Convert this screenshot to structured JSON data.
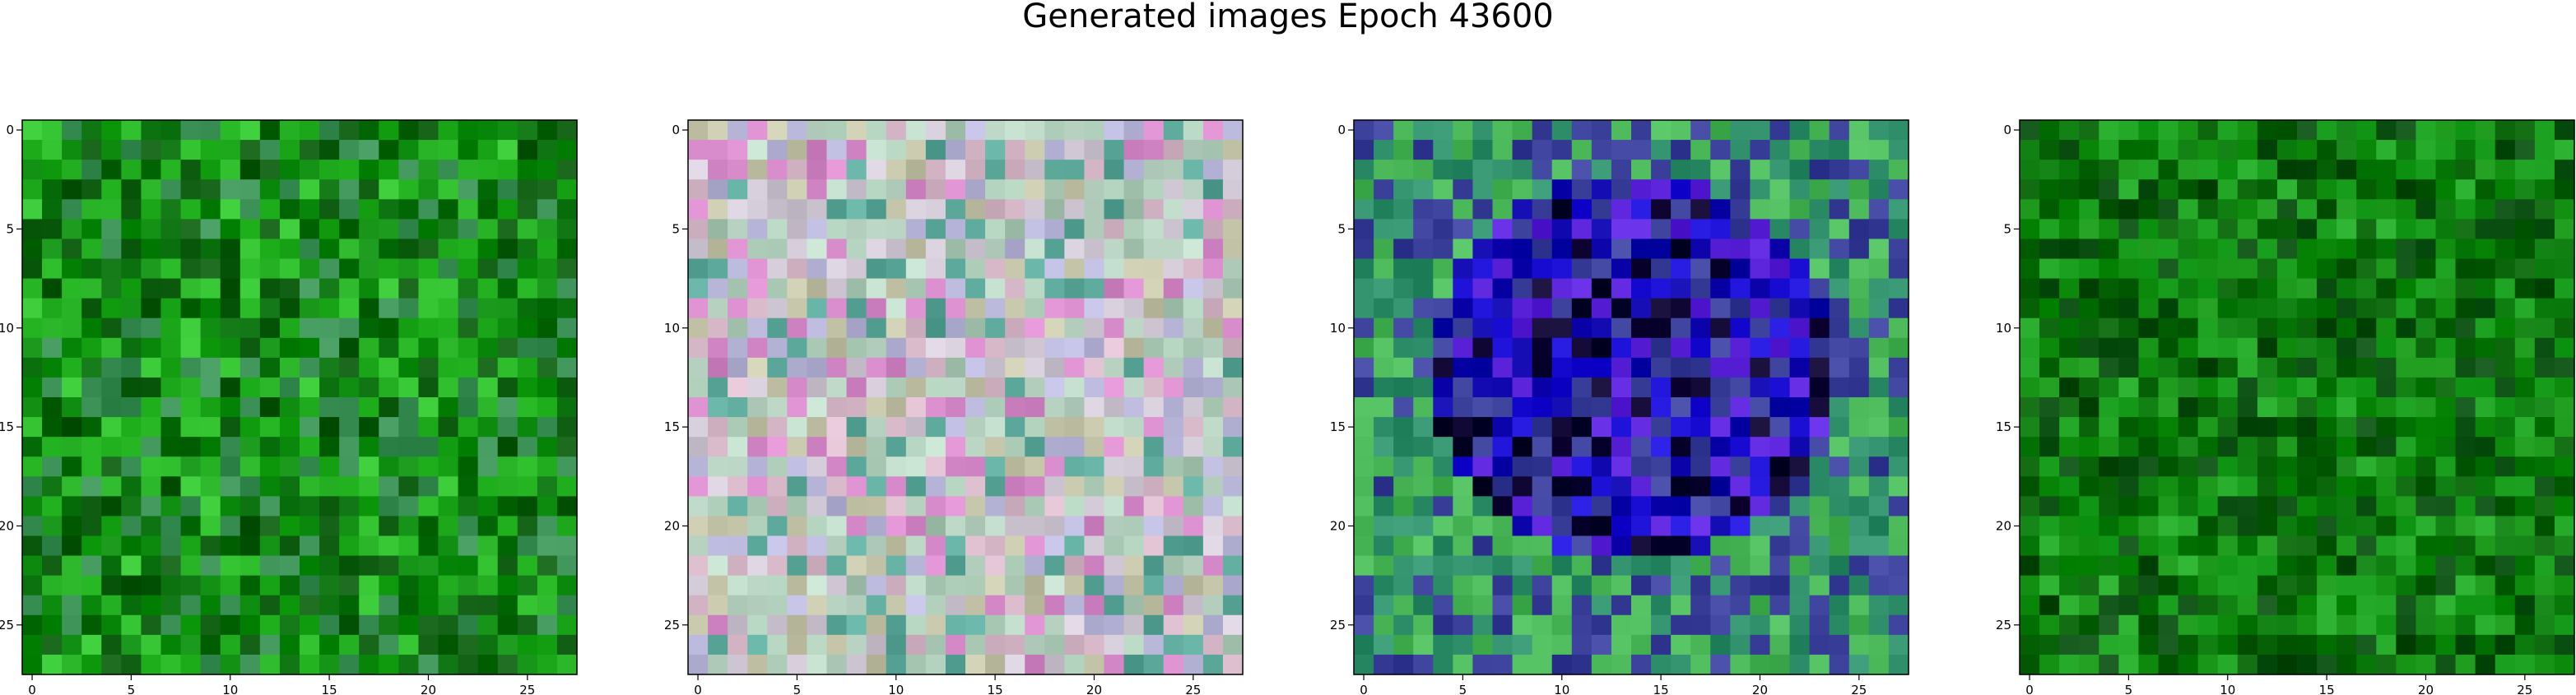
{
  "figure": {
    "title": "Generated images Epoch 43600"
  },
  "chart_data": [
    {
      "type": "heatmap",
      "panel": 1,
      "grid_size": [
        28,
        28
      ],
      "x_ticks": [
        "0",
        "5",
        "10",
        "15",
        "20",
        "25"
      ],
      "y_ticks": [
        "0",
        "5",
        "10",
        "15",
        "20",
        "25"
      ],
      "xlim": [
        -0.5,
        27.5
      ],
      "ylim": [
        27.5,
        -0.5
      ],
      "dominant_colors": [
        "#0b8a0d",
        "#1ea91c",
        "#046a08",
        "#2fbf2d",
        "#0d5c10",
        "#3a8f55"
      ],
      "description": "mostly green noise pixels"
    },
    {
      "type": "heatmap",
      "panel": 2,
      "grid_size": [
        28,
        28
      ],
      "x_ticks": [
        "0",
        "5",
        "10",
        "15",
        "20",
        "25"
      ],
      "y_ticks": [
        "0",
        "5",
        "10",
        "15",
        "20",
        "25"
      ],
      "xlim": [
        -0.5,
        27.5
      ],
      "ylim": [
        27.5,
        -0.5
      ],
      "dominant_colors": [
        "#cfc7d4",
        "#bcd7c5",
        "#d7b8c8",
        "#a9c9b4",
        "#b7b5d8",
        "#c4c4a9",
        "#d689c9",
        "#5aa79a"
      ],
      "description": "pastel mixed-color noise"
    },
    {
      "type": "heatmap",
      "panel": 3,
      "grid_size": [
        28,
        28
      ],
      "x_ticks": [
        "0",
        "5",
        "10",
        "15",
        "20",
        "25"
      ],
      "y_ticks": [
        "0",
        "5",
        "10",
        "15",
        "20",
        "25"
      ],
      "xlim": [
        -0.5,
        27.5
      ],
      "ylim": [
        27.5,
        -0.5
      ],
      "dominant_colors": [
        "#1d10d6",
        "#0a00a8",
        "#5a22d9",
        "#2f8f6a",
        "#49b657",
        "#3a3f9a",
        "#0c0330"
      ],
      "description": "green border with blue/purple blob in center"
    },
    {
      "type": "heatmap",
      "panel": 4,
      "grid_size": [
        28,
        28
      ],
      "x_ticks": [
        "0",
        "5",
        "10",
        "15",
        "20",
        "25"
      ],
      "y_ticks": [
        "0",
        "5",
        "10",
        "15",
        "20",
        "25"
      ],
      "xlim": [
        -0.5,
        27.5
      ],
      "ylim": [
        27.5,
        -0.5
      ],
      "dominant_colors": [
        "#0a7a0c",
        "#138f12",
        "#056006",
        "#1fa322",
        "#0b4e12"
      ],
      "description": "dark green noise pixels"
    }
  ]
}
